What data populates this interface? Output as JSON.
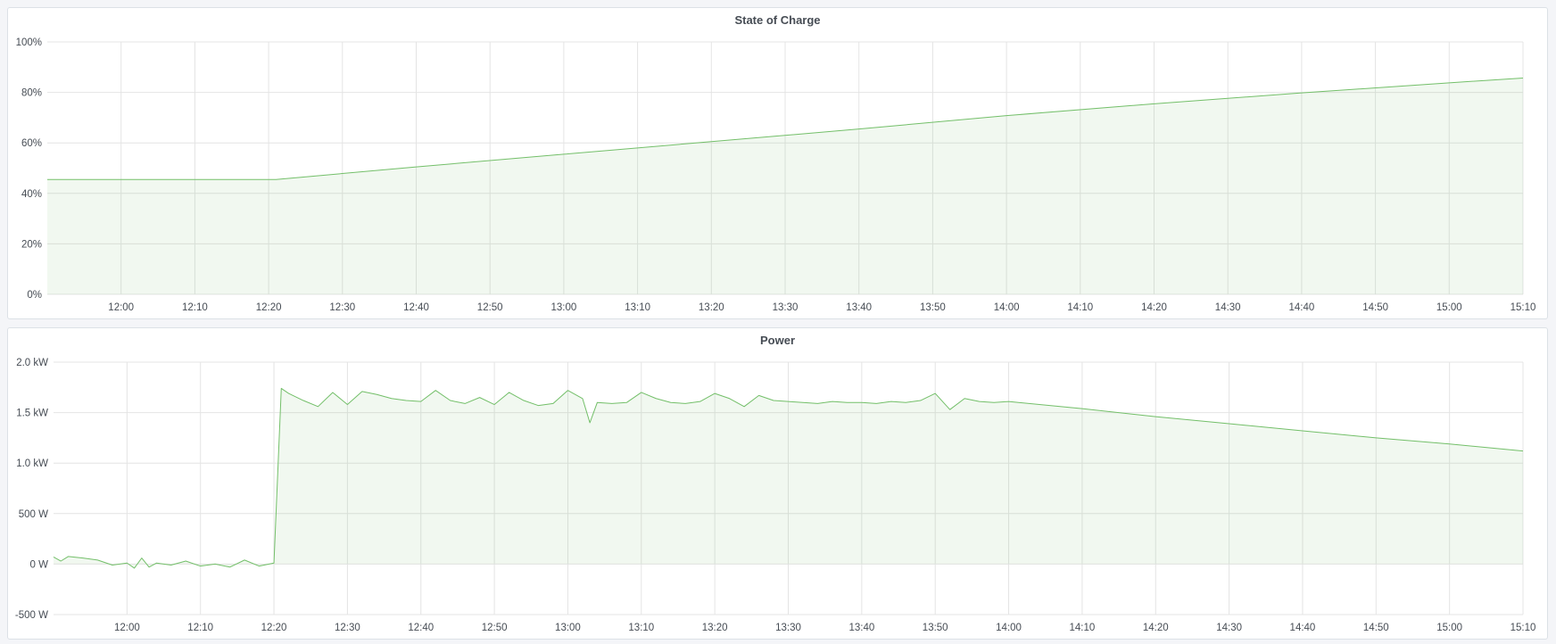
{
  "colors": {
    "series": "#73bf69",
    "fill": "rgba(115,191,105,0.10)",
    "grid": "#e4e4e4",
    "background": "#f4f5f8"
  },
  "chart_data": [
    {
      "type": "area",
      "title": "State of Charge",
      "xlabel": "",
      "ylabel": "",
      "xlim": [
        "11:50",
        "15:10"
      ],
      "ylim": [
        0,
        100
      ],
      "grid": true,
      "x_ticks": [
        "12:00",
        "12:10",
        "12:20",
        "12:30",
        "12:40",
        "12:50",
        "13:00",
        "13:10",
        "13:20",
        "13:30",
        "13:40",
        "13:50",
        "14:00",
        "14:10",
        "14:20",
        "14:30",
        "14:40",
        "14:50",
        "15:00",
        "15:10"
      ],
      "y_ticks": [
        0,
        20,
        40,
        60,
        80,
        100
      ],
      "y_tick_labels": [
        "0%",
        "20%",
        "40%",
        "60%",
        "80%",
        "100%"
      ],
      "series": [
        {
          "x": [
            "11:50",
            "12:00",
            "12:10",
            "12:21",
            "12:40",
            "13:00",
            "13:20",
            "13:40",
            "14:00",
            "14:20",
            "14:40",
            "15:00",
            "15:10"
          ],
          "values": [
            45.5,
            45.5,
            45.5,
            45.5,
            50.5,
            55.5,
            60.5,
            65.5,
            70.8,
            75.5,
            79.8,
            83.8,
            85.7
          ]
        }
      ]
    },
    {
      "type": "area",
      "title": "Power",
      "xlabel": "",
      "ylabel": "",
      "xlim": [
        "11:50",
        "15:10"
      ],
      "ylim": [
        -500,
        2000
      ],
      "grid": true,
      "x_ticks": [
        "12:00",
        "12:10",
        "12:20",
        "12:30",
        "12:40",
        "12:50",
        "13:00",
        "13:10",
        "13:20",
        "13:30",
        "13:40",
        "13:50",
        "14:00",
        "14:10",
        "14:20",
        "14:30",
        "14:40",
        "14:50",
        "15:00",
        "15:10"
      ],
      "y_ticks": [
        -500,
        0,
        500,
        1000,
        1500,
        2000
      ],
      "y_tick_labels": [
        "-500 W",
        "0 W",
        "500 W",
        "1.0 kW",
        "1.5 kW",
        "2.0 kW"
      ],
      "series": [
        {
          "x": [
            "11:50",
            "11:51",
            "11:52",
            "11:54",
            "11:56",
            "11:58",
            "12:00",
            "12:01",
            "12:02",
            "12:03",
            "12:04",
            "12:06",
            "12:08",
            "12:10",
            "12:12",
            "12:14",
            "12:16",
            "12:18",
            "12:20",
            "12:21",
            "12:22",
            "12:24",
            "12:26",
            "12:28",
            "12:30",
            "12:32",
            "12:34",
            "12:36",
            "12:38",
            "12:40",
            "12:42",
            "12:44",
            "12:46",
            "12:48",
            "12:50",
            "12:52",
            "12:54",
            "12:56",
            "12:58",
            "13:00",
            "13:02",
            "13:03",
            "13:04",
            "13:06",
            "13:08",
            "13:10",
            "13:12",
            "13:14",
            "13:16",
            "13:18",
            "13:20",
            "13:22",
            "13:24",
            "13:26",
            "13:28",
            "13:30",
            "13:32",
            "13:34",
            "13:36",
            "13:38",
            "13:40",
            "13:42",
            "13:44",
            "13:46",
            "13:48",
            "13:50",
            "13:52",
            "13:54",
            "13:56",
            "13:58",
            "14:00",
            "14:10",
            "14:20",
            "14:30",
            "14:40",
            "14:50",
            "15:00",
            "15:10"
          ],
          "values": [
            70,
            30,
            75,
            60,
            40,
            -10,
            10,
            -40,
            60,
            -30,
            10,
            -10,
            30,
            -20,
            0,
            -30,
            40,
            -20,
            10,
            1740,
            1690,
            1620,
            1560,
            1700,
            1580,
            1710,
            1680,
            1640,
            1620,
            1610,
            1720,
            1620,
            1590,
            1650,
            1580,
            1700,
            1620,
            1570,
            1590,
            1720,
            1640,
            1400,
            1600,
            1590,
            1600,
            1700,
            1640,
            1600,
            1590,
            1610,
            1690,
            1640,
            1560,
            1670,
            1620,
            1610,
            1600,
            1590,
            1610,
            1600,
            1600,
            1590,
            1610,
            1600,
            1620,
            1690,
            1530,
            1640,
            1610,
            1600,
            1610,
            1540,
            1460,
            1390,
            1320,
            1250,
            1190,
            1120
          ]
        }
      ]
    }
  ]
}
